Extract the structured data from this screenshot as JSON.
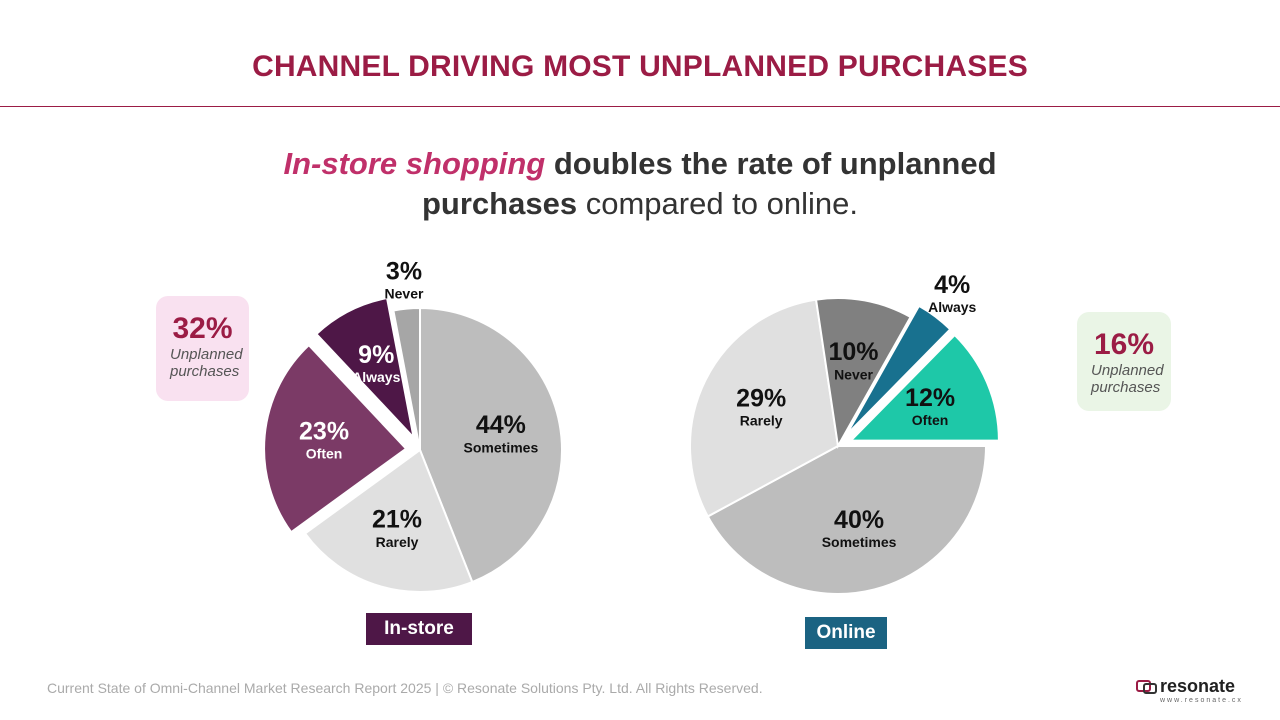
{
  "title": "CHANNEL DRIVING MOST UNPLANNED PURCHASES",
  "headline": {
    "highlight": "In-store shopping",
    "bold_1": "doubles the rate of unplanned",
    "bold_2": "purchases",
    "rest": "compared to online."
  },
  "chart_data": [
    {
      "type": "pie",
      "title": "In-store",
      "title_color": "#4e1747",
      "categories": [
        "Sometimes",
        "Rarely",
        "Often",
        "Always",
        "Never"
      ],
      "values": [
        44,
        21,
        23,
        9,
        3
      ],
      "value_labels": [
        "44%",
        "21%",
        "23%",
        "9%",
        "3%"
      ],
      "colors": [
        "#bdbdbd",
        "#e0e0e0",
        "#7b3a66",
        "#4e1747",
        "#a6a6a6"
      ],
      "annotation": {
        "value_label": "32%",
        "text": "Unplanned purchases"
      }
    },
    {
      "type": "pie",
      "title": "Online",
      "title_color": "#1b6382",
      "categories": [
        "Sometimes",
        "Rarely",
        "Never",
        "Always",
        "Often"
      ],
      "values": [
        40,
        29,
        10,
        4,
        12
      ],
      "value_labels": [
        "40%",
        "29%",
        "10%",
        "4%",
        "12%"
      ],
      "colors": [
        "#bdbdbd",
        "#e0e0e0",
        "#808080",
        "#18718f",
        "#1ec8a8"
      ],
      "annotation": {
        "value_label": "16%",
        "text": "Unplanned purchases"
      }
    }
  ],
  "footer": "Current State of Omni-Channel Market Research Report 2025 | © Resonate Solutions Pty. Ltd. All Rights Reserved.",
  "logo": {
    "name": "resonate",
    "url": "www.resonate.cx"
  }
}
